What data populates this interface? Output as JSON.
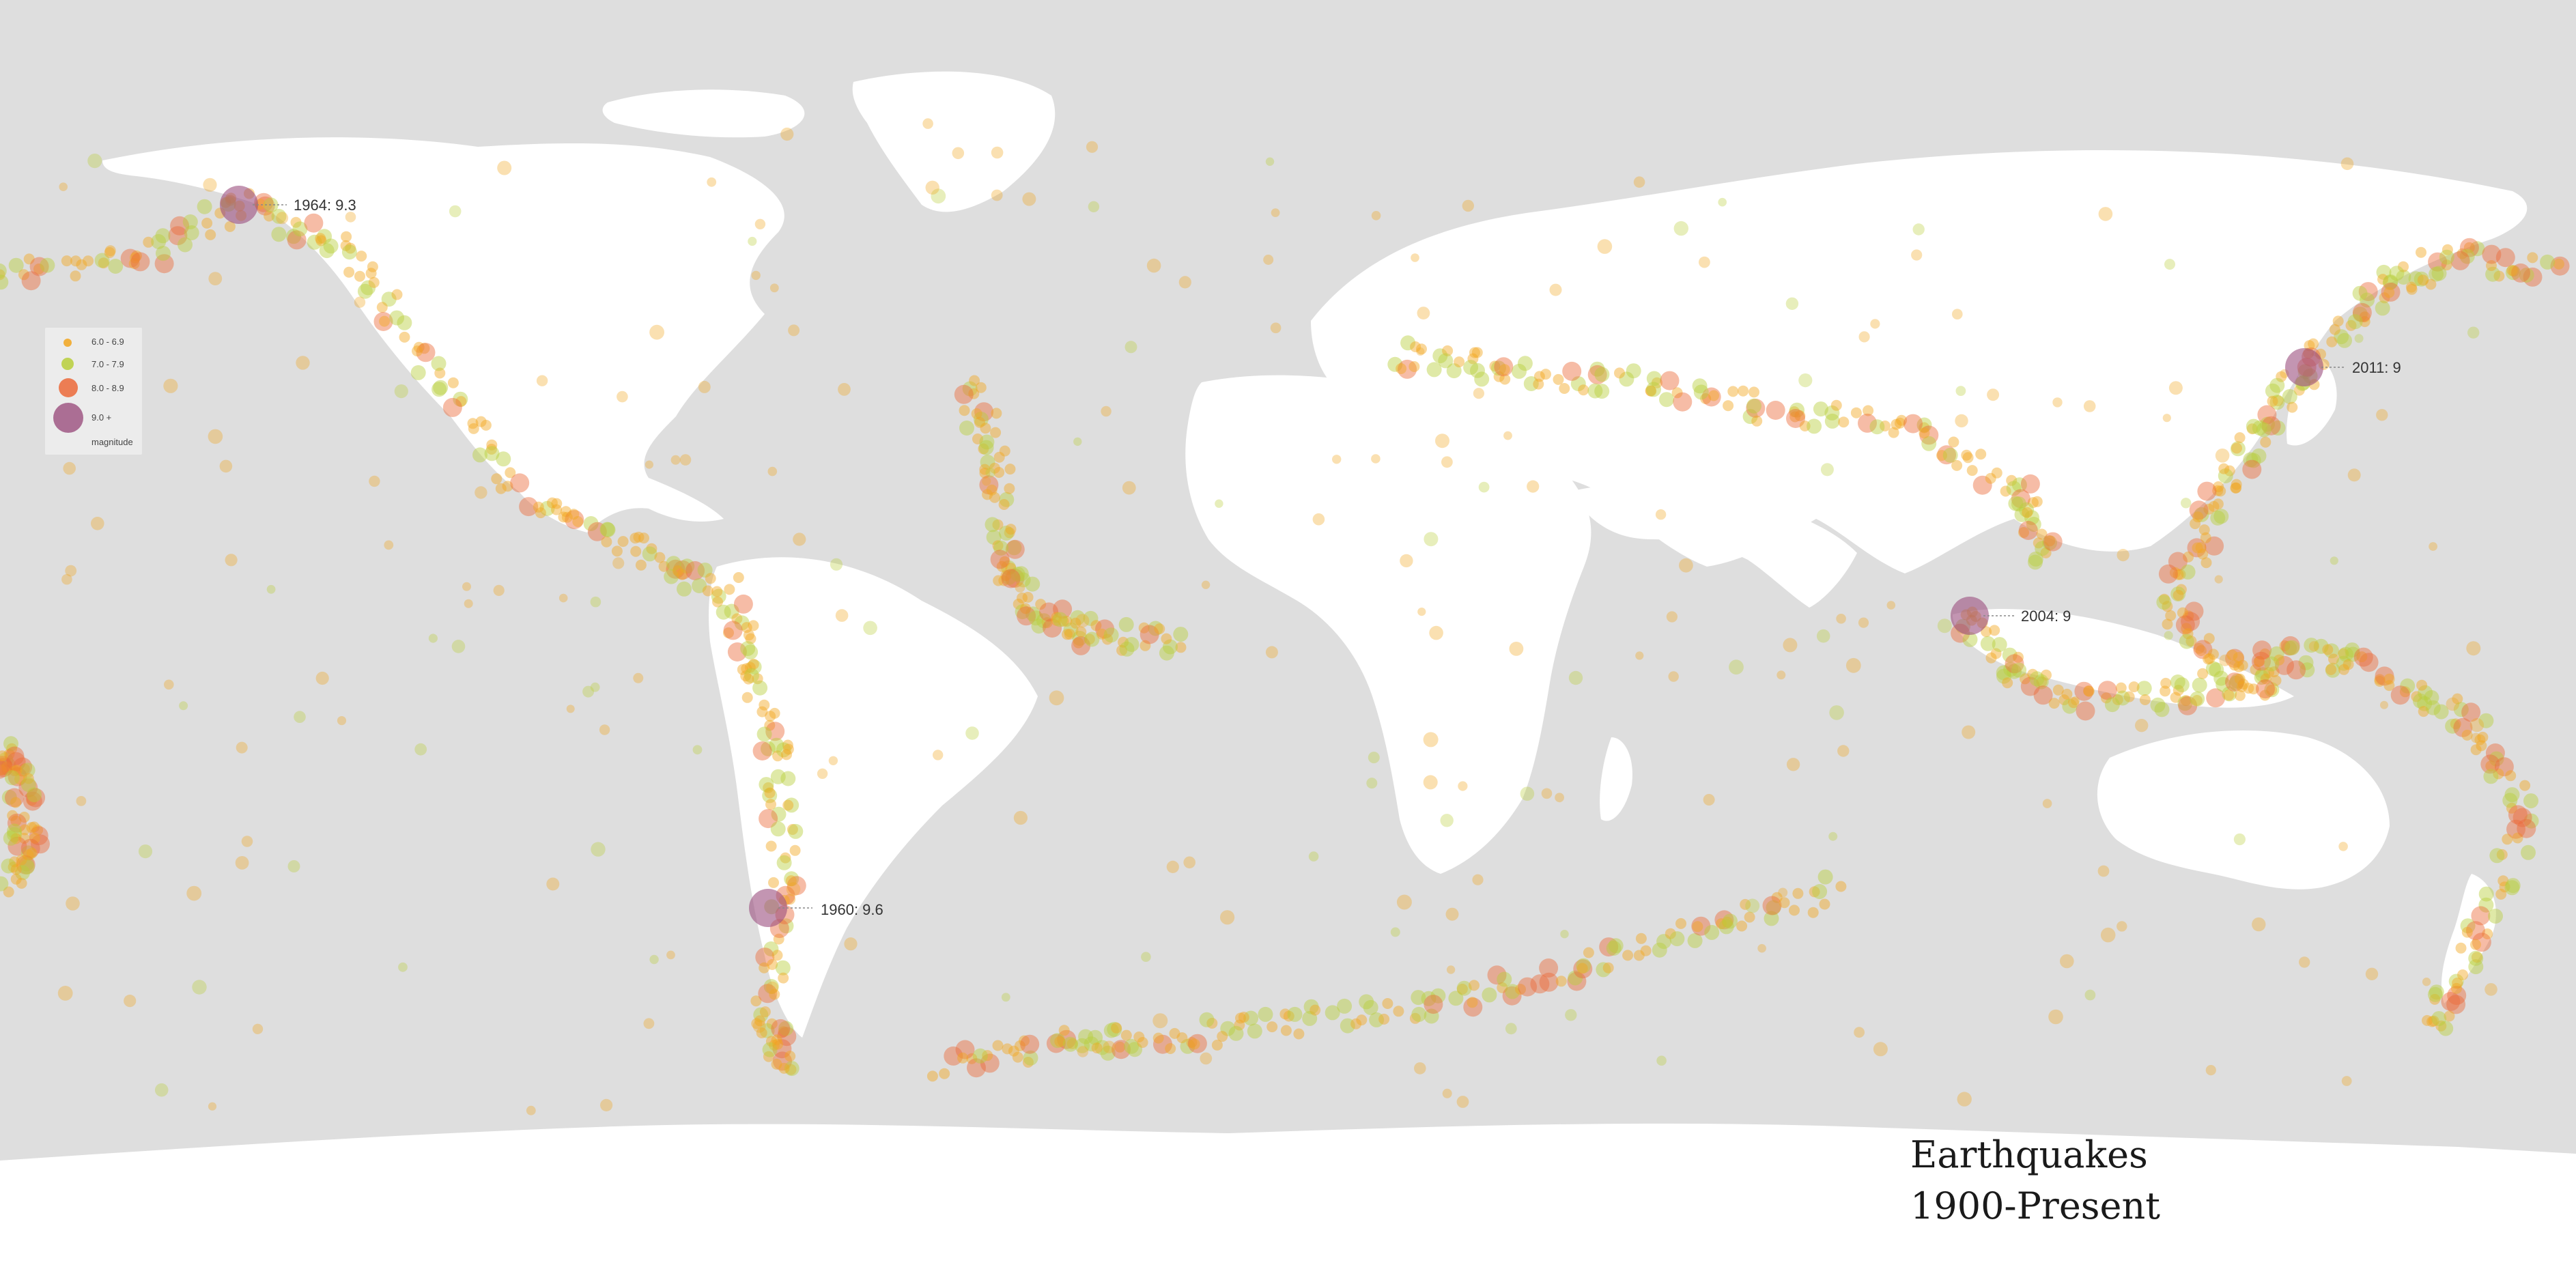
{
  "title": {
    "line1": "Earthquakes",
    "line2": "1900-Present"
  },
  "legend": {
    "items": [
      {
        "label": "6.0 - 6.9",
        "color": "#f2a61f"
      },
      {
        "label": "7.0 - 7.9",
        "color": "#b9cf3b"
      },
      {
        "label": "8.0 - 8.9",
        "color": "#ec6a3a"
      },
      {
        "label": "9.0 +",
        "color": "#9b4f7e"
      }
    ],
    "unit": "magnitude"
  },
  "callouts": [
    {
      "year": "1964",
      "magnitude": "9.3",
      "label": "1964: 9.3"
    },
    {
      "year": "1960",
      "magnitude": "9.6",
      "label": "1960: 9.6"
    },
    {
      "year": "2004",
      "magnitude": "9",
      "label": "2004: 9"
    },
    {
      "year": "2011",
      "magnitude": "9",
      "label": "2011: 9"
    }
  ],
  "colors": {
    "ocean": "#dedede",
    "land": "#ffffff",
    "mag6": "#f2a61f",
    "mag7": "#b9cf3b",
    "mag8": "#ec6a3a",
    "mag9": "#9b4f7e"
  },
  "map": {
    "projection": "equirectangular",
    "center_longitude": "~30°E"
  }
}
